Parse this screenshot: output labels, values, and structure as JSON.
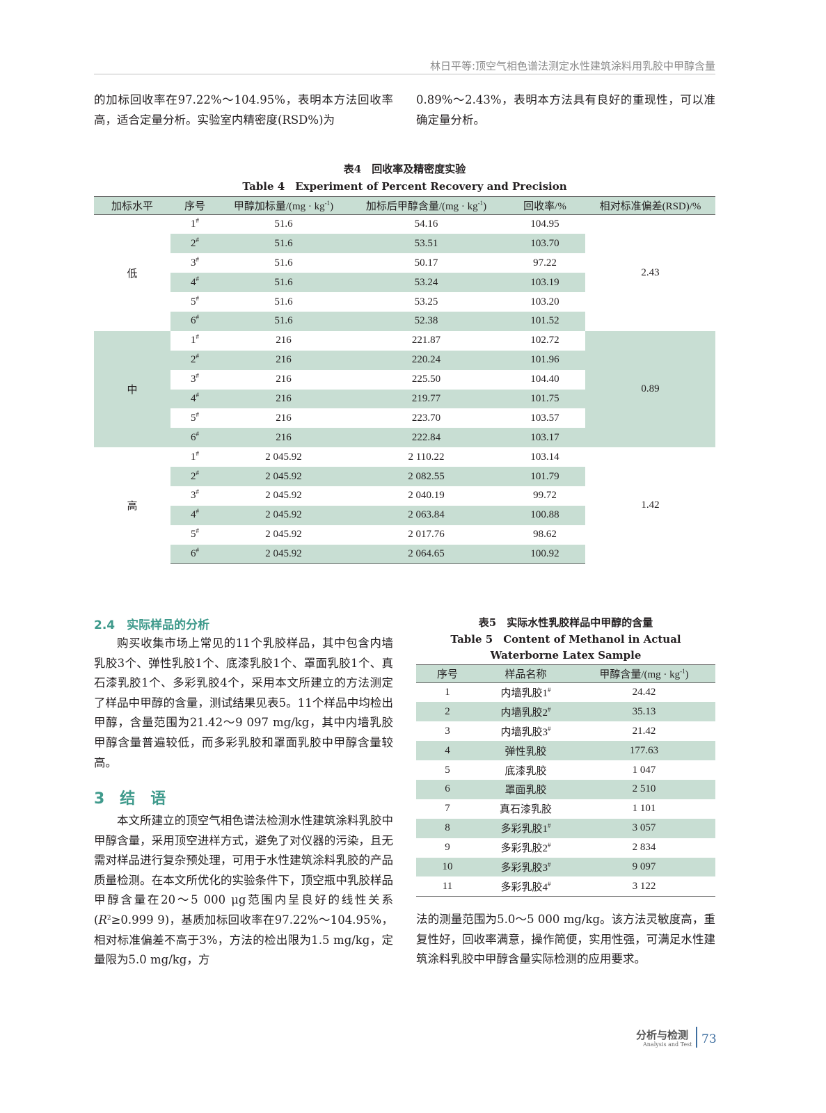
{
  "header": {
    "running_title": "林日平等:顶空气相色谱法测定水性建筑涂料用乳胶中甲醇含量"
  },
  "top": {
    "left_text": "的加标回收率在97.22%～104.95%，表明本方法回收率高，适合定量分析。实验室内精密度(RSD%)为",
    "right_text": "0.89%～2.43%，表明本方法具有良好的重现性，可以准确定量分析。"
  },
  "table4": {
    "caption_cn": "表4　回收率及精密度实验",
    "caption_en": "Table 4　Experiment of Percent Recovery and Precision",
    "headers": [
      {
        "t": "加标水平"
      },
      {
        "t": "序号"
      },
      {
        "t": "甲醇加标量/(mg · kg",
        "s": "-1",
        "a": ")"
      },
      {
        "t": "加标后甲醇含量/(mg · kg",
        "s": "-1",
        "a": ")"
      },
      {
        "t": "回收率/%"
      },
      {
        "t": "相对标准偏差(RSD)/%"
      }
    ],
    "groups": [
      {
        "level": "低",
        "rsd": "2.43",
        "rows": [
          [
            "1",
            "51.6",
            "54.16",
            "104.95"
          ],
          [
            "2",
            "51.6",
            "53.51",
            "103.70"
          ],
          [
            "3",
            "51.6",
            "50.17",
            "97.22"
          ],
          [
            "4",
            "51.6",
            "53.24",
            "103.19"
          ],
          [
            "5",
            "51.6",
            "53.25",
            "103.20"
          ],
          [
            "6",
            "51.6",
            "52.38",
            "101.52"
          ]
        ]
      },
      {
        "level": "中",
        "rsd": "0.89",
        "rows": [
          [
            "1",
            "216",
            "221.87",
            "102.72"
          ],
          [
            "2",
            "216",
            "220.24",
            "101.96"
          ],
          [
            "3",
            "216",
            "225.50",
            "104.40"
          ],
          [
            "4",
            "216",
            "219.77",
            "101.75"
          ],
          [
            "5",
            "216",
            "223.70",
            "103.57"
          ],
          [
            "6",
            "216",
            "222.84",
            "103.17"
          ]
        ]
      },
      {
        "level": "高",
        "rsd": "1.42",
        "rows": [
          [
            "1",
            "2 045.92",
            "2 110.22",
            "103.14"
          ],
          [
            "2",
            "2 045.92",
            "2 082.55",
            "101.79"
          ],
          [
            "3",
            "2 045.92",
            "2 040.19",
            "99.72"
          ],
          [
            "4",
            "2 045.92",
            "2 063.84",
            "100.88"
          ],
          [
            "5",
            "2 045.92",
            "2 017.76",
            "98.62"
          ],
          [
            "6",
            "2 045.92",
            "2 064.65",
            "100.92"
          ]
        ]
      }
    ]
  },
  "section24": {
    "heading": "2.4　实际样品的分析",
    "text": "购买收集市场上常见的11个乳胶样品，其中包含内墙乳胶3个、弹性乳胶1个、底漆乳胶1个、罩面乳胶1个、真石漆乳胶1个、多彩乳胶4个，采用本文所建立的方法测定了样品中甲醇的含量，测试结果见表5。11个样品中均检出甲醇，含量范围为21.42～9 097 mg/kg，其中内墙乳胶甲醇含量普遍较低，而多彩乳胶和罩面乳胶中甲醇含量较高。"
  },
  "section3": {
    "heading": "3　结　语",
    "text_a": "本文所建立的顶空气相色谱法检测水性建筑涂料乳胶中甲醇含量，采用顶空进样方式，避免了对仪器的污染，且无需对样品进行复杂预处理，可用于水性建筑涂料乳胶的产品质量检测。在本文所优化的实验条件下，顶空瓶中乳胶样品甲醇含量在20～5 000 μg范围内呈良好的线性关系(",
    "r": "R",
    "r_sup": "2",
    "text_b": "≥0.999 9)，基质加标回收率在97.22%～104.95%，相对标准偏差不高于3%，方法的检出限为1.5 mg/kg，定量限为5.0 mg/kg，方",
    "text_right": "法的测量范围为5.0～5 000 mg/kg。该方法灵敏度高，重复性好，回收率满意，操作简便，实用性强，可满足水性建筑涂料乳胶中甲醇含量实际检测的应用要求。"
  },
  "table5": {
    "caption_cn": "表5　实际水性乳胶样品中甲醇的含量",
    "caption_en": "Table 5　Content of Methanol in Actual Waterborne Latex Sample",
    "headers": [
      {
        "t": "序号"
      },
      {
        "t": "样品名称"
      },
      {
        "t": "甲醇含量/(mg · kg",
        "s": "-1",
        "a": ")"
      }
    ],
    "rows": [
      [
        "1",
        "内墙乳胶1",
        "#",
        "24.42"
      ],
      [
        "2",
        "内墙乳胶2",
        "#",
        "35.13"
      ],
      [
        "3",
        "内墙乳胶3",
        "#",
        "21.42"
      ],
      [
        "4",
        "弹性乳胶",
        "",
        "177.63"
      ],
      [
        "5",
        "底漆乳胶",
        "",
        "1 047"
      ],
      [
        "6",
        "罩面乳胶",
        "",
        "2 510"
      ],
      [
        "7",
        "真石漆乳胶",
        "",
        "1 101"
      ],
      [
        "8",
        "多彩乳胶1",
        "#",
        "3 057"
      ],
      [
        "9",
        "多彩乳胶2",
        "#",
        "2 834"
      ],
      [
        "10",
        "多彩乳胶3",
        "#",
        "9 097"
      ],
      [
        "11",
        "多彩乳胶4",
        "#",
        "3 122"
      ]
    ]
  },
  "footer": {
    "journal_cn": "分析与检测",
    "journal_en": "Analysis and Test",
    "page_number": "73"
  },
  "colors": {
    "table_fill": "#c8ded3",
    "section_heading": "#3f9a8c",
    "page_number": "#3f6fa0"
  }
}
